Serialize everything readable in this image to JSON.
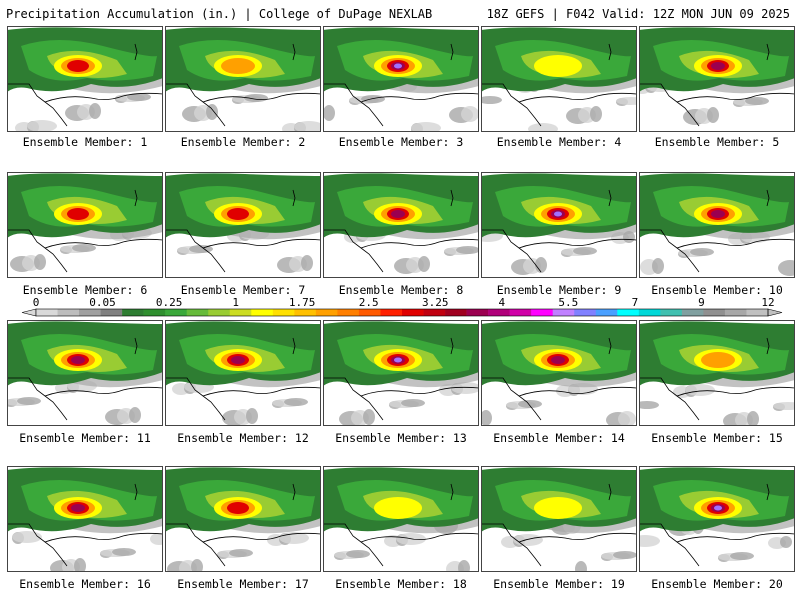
{
  "header": {
    "left_title": "Precipitation Accumulation (in.) | College of DuPage NEXLAB",
    "right_title": "18Z GEFS | F042 Valid: 12Z MON JUN 09 2025"
  },
  "panels": [
    {
      "label": "Ensemble Member: 1",
      "peak_in": 2.5
    },
    {
      "label": "Ensemble Member: 2",
      "peak_in": 1.75
    },
    {
      "label": "Ensemble Member: 3",
      "peak_in": 5.5
    },
    {
      "label": "Ensemble Member: 4",
      "peak_in": 1.5
    },
    {
      "label": "Ensemble Member: 5",
      "peak_in": 4.5
    },
    {
      "label": "Ensemble Member: 6",
      "peak_in": 2.5
    },
    {
      "label": "Ensemble Member: 7",
      "peak_in": 2.5
    },
    {
      "label": "Ensemble Member: 8",
      "peak_in": 3.5
    },
    {
      "label": "Ensemble Member: 9",
      "peak_in": 5.0
    },
    {
      "label": "Ensemble Member: 10",
      "peak_in": 3.5
    },
    {
      "label": "Ensemble Member: 11",
      "peak_in": 4.5
    },
    {
      "label": "Ensemble Member: 12",
      "peak_in": 4.0
    },
    {
      "label": "Ensemble Member: 13",
      "peak_in": 5.0
    },
    {
      "label": "Ensemble Member: 14",
      "peak_in": 3.25
    },
    {
      "label": "Ensemble Member: 15",
      "peak_in": 2.0
    },
    {
      "label": "Ensemble Member: 16",
      "peak_in": 3.25
    },
    {
      "label": "Ensemble Member: 17",
      "peak_in": 2.75
    },
    {
      "label": "Ensemble Member: 18",
      "peak_in": 1.5
    },
    {
      "label": "Ensemble Member: 19",
      "peak_in": 1.5
    },
    {
      "label": "Ensemble Member: 20",
      "peak_in": 5.5
    }
  ],
  "colorbar": {
    "tick_labels": [
      "0",
      "0.05",
      "0.25",
      "1",
      "1.75",
      "2.5",
      "3.25",
      "4",
      "5.5",
      "7",
      "9",
      "12"
    ],
    "colors": [
      "#d9d9d9",
      "#bdbdbd",
      "#a0a0a0",
      "#808080",
      "#2e7d32",
      "#2f8f2f",
      "#3aa83a",
      "#66bb3a",
      "#99cc33",
      "#ccdd22",
      "#ffff00",
      "#ffe000",
      "#ffc000",
      "#ffa000",
      "#ff7f00",
      "#ff5a00",
      "#ff2000",
      "#e00000",
      "#c00010",
      "#a00020",
      "#9b0050",
      "#b0007a",
      "#d000a8",
      "#ff00ff",
      "#c080ff",
      "#8080ff",
      "#4aa0ff",
      "#00ffff",
      "#00d8d8",
      "#40c0b0",
      "#80a0a0",
      "#909090",
      "#a8a8a8",
      "#c0c0c0"
    ]
  },
  "colors": {
    "background": "#ffffff",
    "map_base": "#ffffff",
    "light_gray": "#d4d4d4",
    "mid_gray": "#a8a8a8",
    "dark_gray": "#808080",
    "green_dark": "#2e7d32",
    "green": "#3aa83a",
    "yellow_green": "#99cc33",
    "yellow": "#ffff00",
    "orange": "#ffa000",
    "red": "#e00000",
    "purple": "#9b0050",
    "violet": "#a070ff",
    "border": "#000000"
  }
}
